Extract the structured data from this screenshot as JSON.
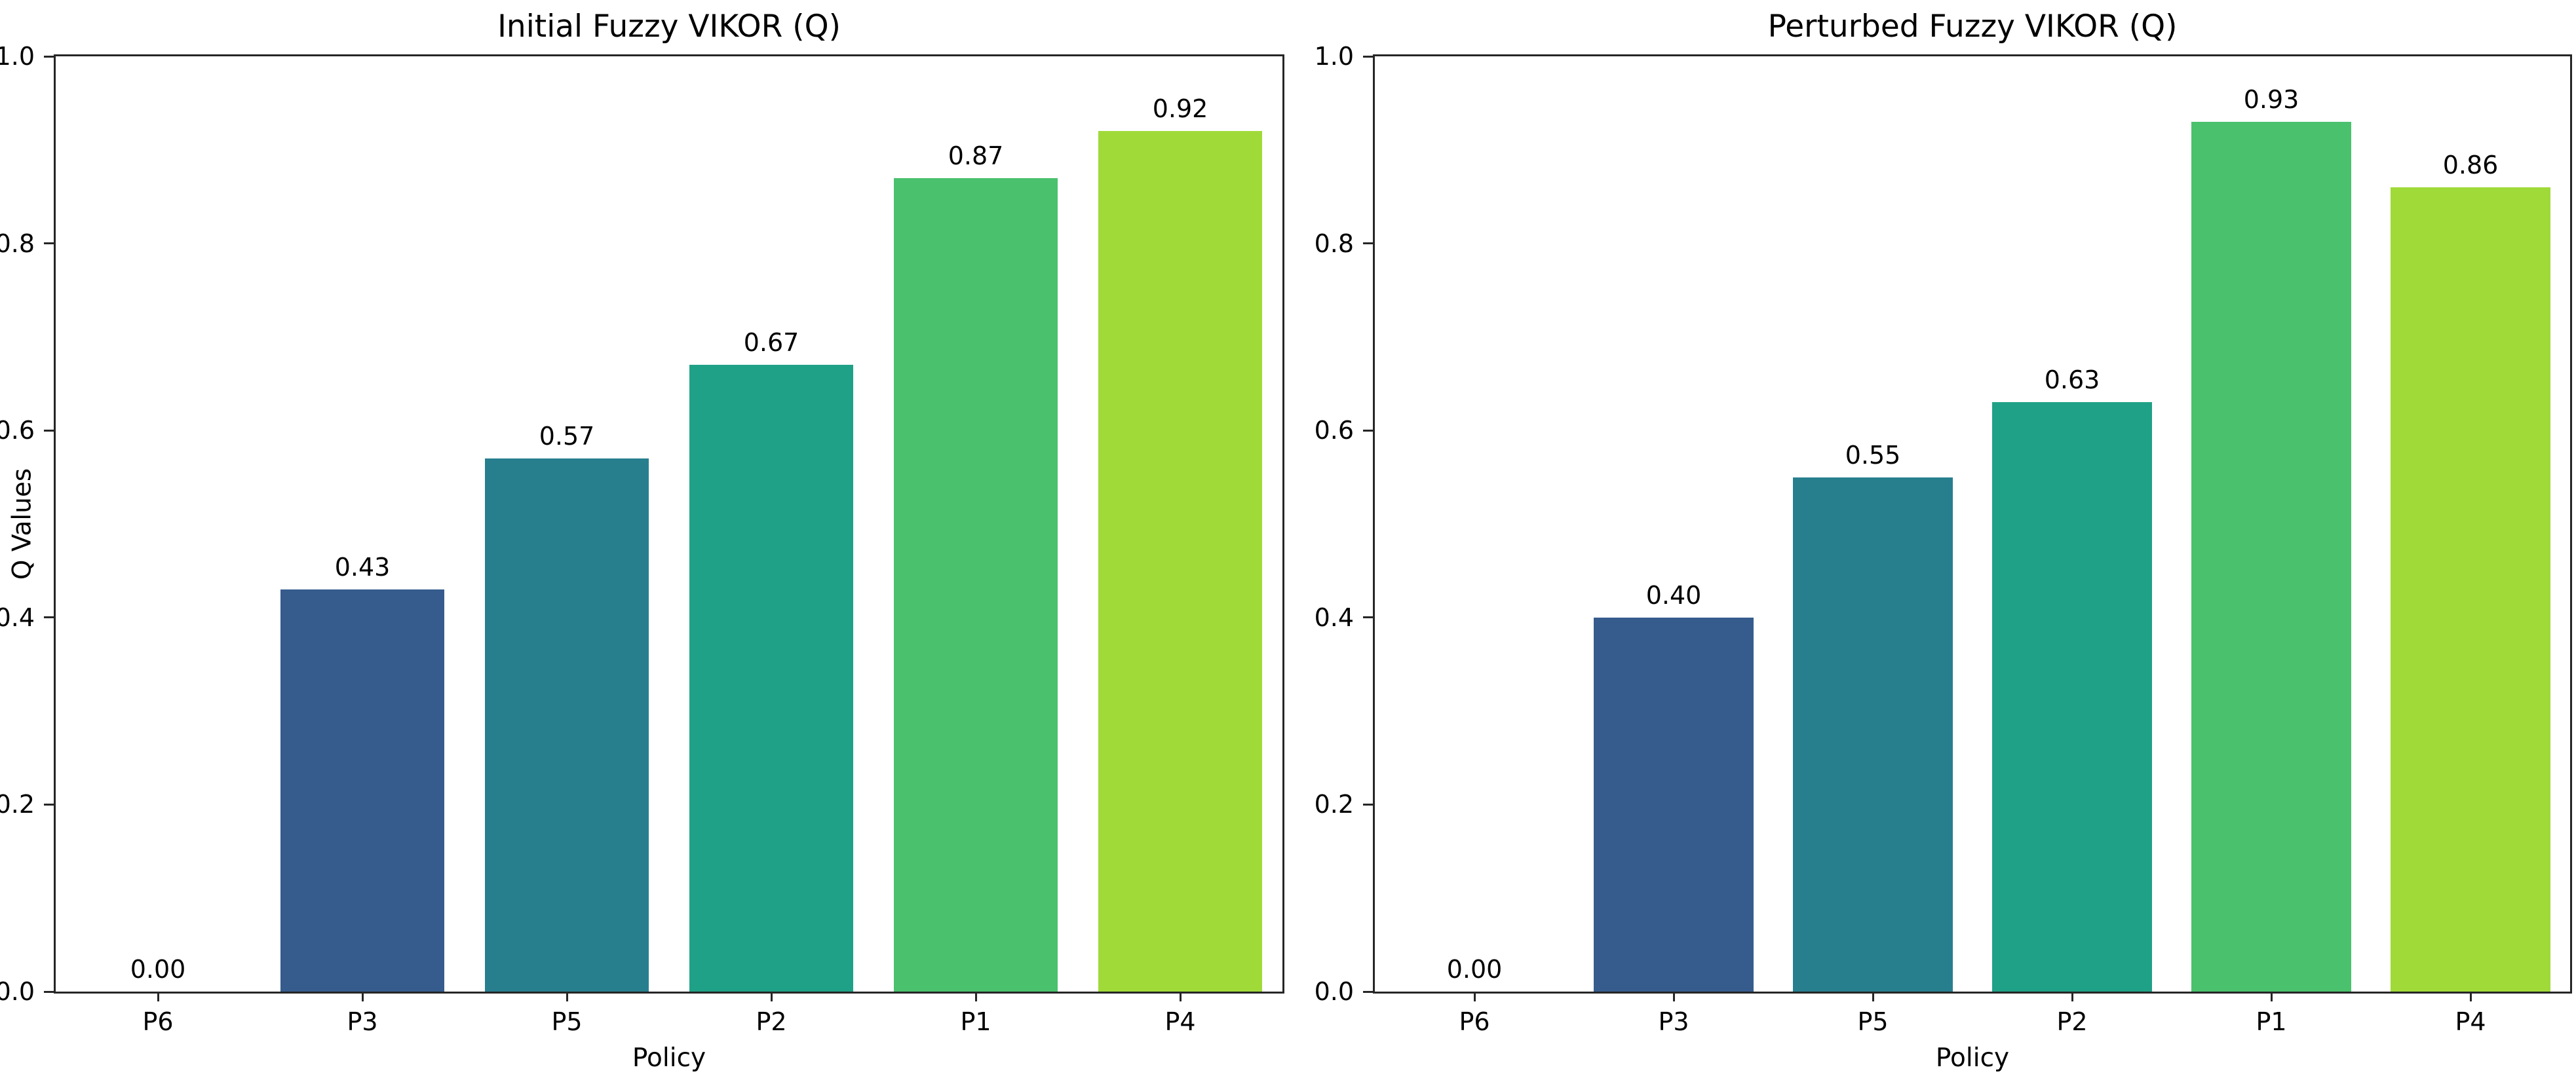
{
  "figure": {
    "background": "#ffffff",
    "text_color": "#000000",
    "spine_color": "#262626"
  },
  "chart_data": [
    {
      "type": "bar",
      "title": "Initial Fuzzy VIKOR (Q)",
      "xlabel": "Policy",
      "ylabel": "Q Values",
      "categories": [
        "P6",
        "P3",
        "P5",
        "P2",
        "P1",
        "P4"
      ],
      "values": [
        0.0,
        0.43,
        0.57,
        0.67,
        0.87,
        0.92
      ],
      "bar_labels": [
        "0.00",
        "0.43",
        "0.57",
        "0.67",
        "0.87",
        "0.92"
      ],
      "colors": [
        "#46327e",
        "#365c8d",
        "#277f8e",
        "#1fa187",
        "#4ac16d",
        "#a0da39"
      ],
      "ylim": [
        0.0,
        1.0
      ],
      "yticks": [
        "0.0",
        "0.2",
        "0.4",
        "0.6",
        "0.8",
        "1.0"
      ],
      "grid": false,
      "legend": null,
      "bar_width_fraction": 0.8
    },
    {
      "type": "bar",
      "title": "Perturbed Fuzzy VIKOR (Q)",
      "xlabel": "Policy",
      "ylabel": "",
      "categories": [
        "P6",
        "P3",
        "P5",
        "P2",
        "P1",
        "P4"
      ],
      "values": [
        0.0,
        0.4,
        0.55,
        0.63,
        0.93,
        0.86
      ],
      "bar_labels": [
        "0.00",
        "0.40",
        "0.55",
        "0.63",
        "0.93",
        "0.86"
      ],
      "colors": [
        "#46327e",
        "#365c8d",
        "#277f8e",
        "#1fa187",
        "#4ac16d",
        "#a0da39"
      ],
      "ylim": [
        0.0,
        1.0
      ],
      "yticks": [
        "0.0",
        "0.2",
        "0.4",
        "0.6",
        "0.8",
        "1.0"
      ],
      "grid": false,
      "legend": null,
      "bar_width_fraction": 0.8
    }
  ]
}
